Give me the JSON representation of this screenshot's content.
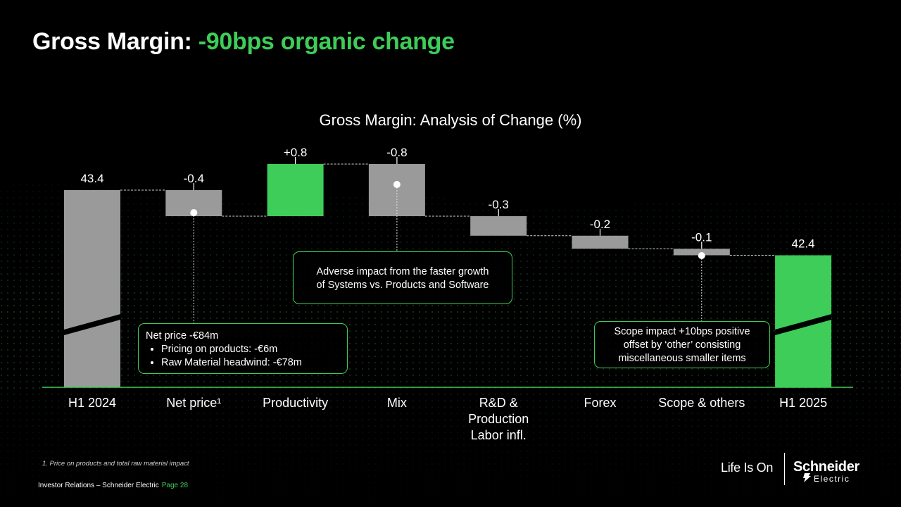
{
  "slide": {
    "title_prefix": "Gross Margin: ",
    "title_accent": "-90bps organic change",
    "footnote": "1. Price on products and total raw material impact",
    "footer_text": "Investor Relations – Schneider Electric",
    "footer_page": "Page 28",
    "brand_tagline": "Life Is On",
    "brand_name": "Schneider",
    "brand_sub": "Electric"
  },
  "colors": {
    "accent": "#3dcd58",
    "gray_bar": "#9a9a9a",
    "background": "#000000"
  },
  "chart_data": {
    "type": "waterfall",
    "title": "Gross Margin: Analysis of Change (%)",
    "categories": [
      "H1 2024",
      "Net price¹",
      "Productivity",
      "Mix",
      "R&D & Production Labor infl.",
      "Forex",
      "Scope & others",
      "H1 2025"
    ],
    "values": [
      43.4,
      -0.4,
      0.8,
      -0.8,
      -0.3,
      -0.2,
      -0.1,
      42.4
    ],
    "data_labels": [
      "43.4",
      "-0.4",
      "+0.8",
      "-0.8",
      "-0.3",
      "-0.2",
      "-0.1",
      "42.4"
    ],
    "kinds": [
      "total",
      "delta",
      "delta",
      "delta",
      "delta",
      "delta",
      "delta",
      "total"
    ],
    "bar_colors": [
      "gray",
      "gray",
      "green",
      "gray",
      "gray",
      "gray",
      "gray",
      "green"
    ],
    "axis_break_on_totals": true,
    "grid": false
  },
  "callouts": {
    "net_price": {
      "heading": "Net price -€84m",
      "bullets": [
        "Pricing on products: -€6m",
        "Raw Material headwind: -€78m"
      ]
    },
    "mix": {
      "line1": "Adverse impact from the faster growth",
      "line2": "of Systems vs. Products and Software"
    },
    "scope": {
      "line1": "Scope impact +10bps positive",
      "line2": "offset by ‘other’ consisting",
      "line3": "miscellaneous smaller items"
    }
  }
}
